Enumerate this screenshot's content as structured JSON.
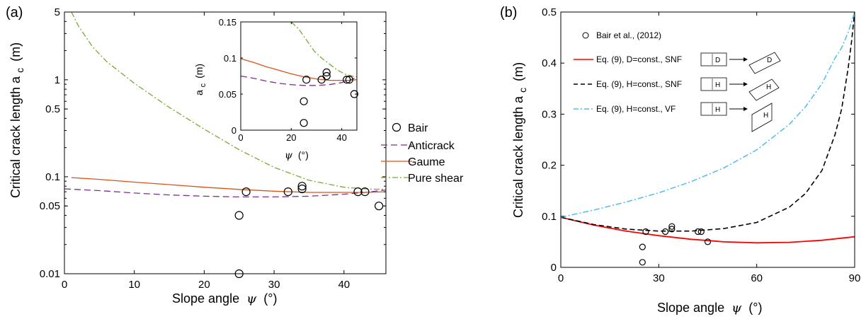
{
  "panels": {
    "a": {
      "label": "(a)"
    },
    "b": {
      "label": "(b)"
    }
  },
  "axis_text": {
    "a_ylabel": "Critical crack length a",
    "a_ylabel_sub": "c",
    "a_ylabel_unit": "(m)",
    "a_xlabel": "Slope angle",
    "a_xlabel_psi": "ψ",
    "a_xlabel_unit": "(°)",
    "inset_ylabel": "a",
    "inset_ylabel_sub": "c",
    "inset_ylabel_unit": "(m)",
    "inset_xlabel_psi": "ψ",
    "inset_xlabel_unit": "(°)",
    "b_ylabel": "Critical crack length a",
    "b_ylabel_sub": "c",
    "b_ylabel_unit": "(m)",
    "b_xlabel": "Slope angle",
    "b_xlabel_psi": "ψ",
    "b_xlabel_unit": "(°)"
  },
  "legend_a": {
    "items": [
      "Bair",
      "Anticrack",
      "Gaume",
      "Pure shear"
    ]
  },
  "legend_b": {
    "items": [
      "Bair et al., (2012)",
      "Eq. (9), D=const., SNF",
      "Eq. (9), H=const., SNF",
      "Eq. (9), H=const., VF"
    ],
    "box_labels": [
      "D",
      "D",
      "H",
      "H",
      "H",
      "H"
    ]
  },
  "colors": {
    "anticrack": "#7e2f8e",
    "gaume": "#d95319",
    "pure_shear": "#77ac30",
    "d_const": "#ff0000",
    "h_const_snf": "#000000",
    "h_const_vf": "#4dbeee"
  },
  "chart_data": [
    {
      "type": "line",
      "panel": "a",
      "xlabel": "Slope angle ψ (°)",
      "ylabel": "Critical crack length a_c (m)",
      "xlim": [
        0,
        46
      ],
      "ylim": [
        0.01,
        5
      ],
      "yscale": "log",
      "xticks": [
        "0",
        "10",
        "20",
        "30",
        "40"
      ],
      "yticks": [
        "0.01",
        "0.05",
        "0.1",
        "0.5",
        "1",
        "5"
      ],
      "grid": false,
      "legend_position": "outside-right",
      "scatter": {
        "name": "Bair",
        "x": [
          25,
          25,
          26,
          32,
          34,
          34,
          42,
          43,
          45
        ],
        "y": [
          0.01,
          0.04,
          0.07,
          0.07,
          0.075,
          0.08,
          0.07,
          0.07,
          0.05
        ]
      },
      "series": [
        {
          "name": "Anticrack",
          "x": [
            0,
            5,
            10,
            15,
            20,
            25,
            30,
            35,
            40,
            43,
            46
          ],
          "y": [
            0.075,
            0.072,
            0.068,
            0.065,
            0.063,
            0.062,
            0.062,
            0.063,
            0.066,
            0.069,
            0.073
          ]
        },
        {
          "name": "Gaume",
          "x": [
            1,
            5,
            10,
            15,
            20,
            25,
            30,
            35,
            40,
            43,
            46
          ],
          "y": [
            0.098,
            0.094,
            0.088,
            0.083,
            0.078,
            0.074,
            0.071,
            0.069,
            0.069,
            0.069,
            0.07
          ]
        },
        {
          "name": "Pure shear",
          "x": [
            1,
            2,
            4,
            6,
            10,
            15,
            20,
            25,
            30,
            35,
            40,
            43,
            46
          ],
          "y": [
            5,
            3.6,
            2.2,
            1.55,
            0.92,
            0.52,
            0.31,
            0.19,
            0.125,
            0.092,
            0.078,
            0.075,
            0.074
          ]
        }
      ]
    },
    {
      "type": "line",
      "panel": "a-inset",
      "xlabel": "ψ (°)",
      "ylabel": "a_c (m)",
      "xlim": [
        0,
        46
      ],
      "ylim": [
        0,
        0.15
      ],
      "xticks": [
        "0",
        "20",
        "40"
      ],
      "yticks": [
        "0",
        "0.05",
        "0.1",
        "0.15"
      ],
      "scatter": {
        "name": "Bair",
        "x": [
          25,
          25,
          26,
          32,
          34,
          34,
          42,
          43,
          45
        ],
        "y": [
          0.01,
          0.04,
          0.07,
          0.07,
          0.075,
          0.08,
          0.07,
          0.07,
          0.05
        ]
      },
      "series": [
        {
          "name": "Anticrack",
          "x": [
            0,
            5,
            10,
            15,
            20,
            25,
            30,
            35,
            40,
            43,
            46
          ],
          "y": [
            0.075,
            0.072,
            0.068,
            0.065,
            0.063,
            0.062,
            0.062,
            0.063,
            0.066,
            0.069,
            0.073
          ]
        },
        {
          "name": "Gaume",
          "x": [
            0,
            5,
            10,
            15,
            20,
            25,
            30,
            35,
            40,
            43,
            46
          ],
          "y": [
            0.099,
            0.094,
            0.088,
            0.083,
            0.078,
            0.074,
            0.071,
            0.069,
            0.069,
            0.069,
            0.07
          ]
        },
        {
          "name": "Pure shear",
          "x": [
            20,
            23,
            26,
            29,
            32,
            35,
            38,
            41,
            44,
            46
          ],
          "y": [
            0.15,
            0.14,
            0.125,
            0.11,
            0.1,
            0.092,
            0.084,
            0.078,
            0.075,
            0.074
          ]
        }
      ]
    },
    {
      "type": "line",
      "panel": "b",
      "xlabel": "Slope angle ψ (°)",
      "ylabel": "Critical crack length a_c (m)",
      "xlim": [
        0,
        90
      ],
      "ylim": [
        0,
        0.5
      ],
      "xticks": [
        "0",
        "30",
        "60",
        "90"
      ],
      "yticks": [
        "0",
        "0.1",
        "0.2",
        "0.3",
        "0.4",
        "0.5"
      ],
      "grid": false,
      "legend_position": "top-left",
      "scatter": {
        "name": "Bair et al., (2012)",
        "x": [
          25,
          25,
          26,
          32,
          34,
          34,
          42,
          43,
          45
        ],
        "y": [
          0.01,
          0.04,
          0.07,
          0.07,
          0.075,
          0.08,
          0.07,
          0.07,
          0.05
        ]
      },
      "series": [
        {
          "name": "Eq. (9), D=const., SNF",
          "x": [
            0,
            10,
            20,
            30,
            40,
            50,
            60,
            70,
            80,
            90
          ],
          "y": [
            0.098,
            0.083,
            0.071,
            0.062,
            0.055,
            0.05,
            0.048,
            0.049,
            0.053,
            0.06
          ]
        },
        {
          "name": "Eq. (9), H=const., SNF",
          "x": [
            0,
            10,
            20,
            30,
            40,
            50,
            60,
            70,
            75,
            80,
            84,
            86,
            88,
            89,
            90
          ],
          "y": [
            0.098,
            0.084,
            0.075,
            0.071,
            0.071,
            0.076,
            0.088,
            0.118,
            0.145,
            0.19,
            0.26,
            0.31,
            0.39,
            0.44,
            0.5
          ]
        },
        {
          "name": "Eq. (9), H=const., VF",
          "x": [
            0,
            10,
            20,
            30,
            40,
            50,
            60,
            70,
            75,
            80,
            84,
            86,
            88,
            89,
            90
          ],
          "y": [
            0.098,
            0.112,
            0.128,
            0.146,
            0.168,
            0.195,
            0.23,
            0.28,
            0.315,
            0.36,
            0.41,
            0.43,
            0.46,
            0.48,
            0.5
          ]
        }
      ]
    }
  ]
}
